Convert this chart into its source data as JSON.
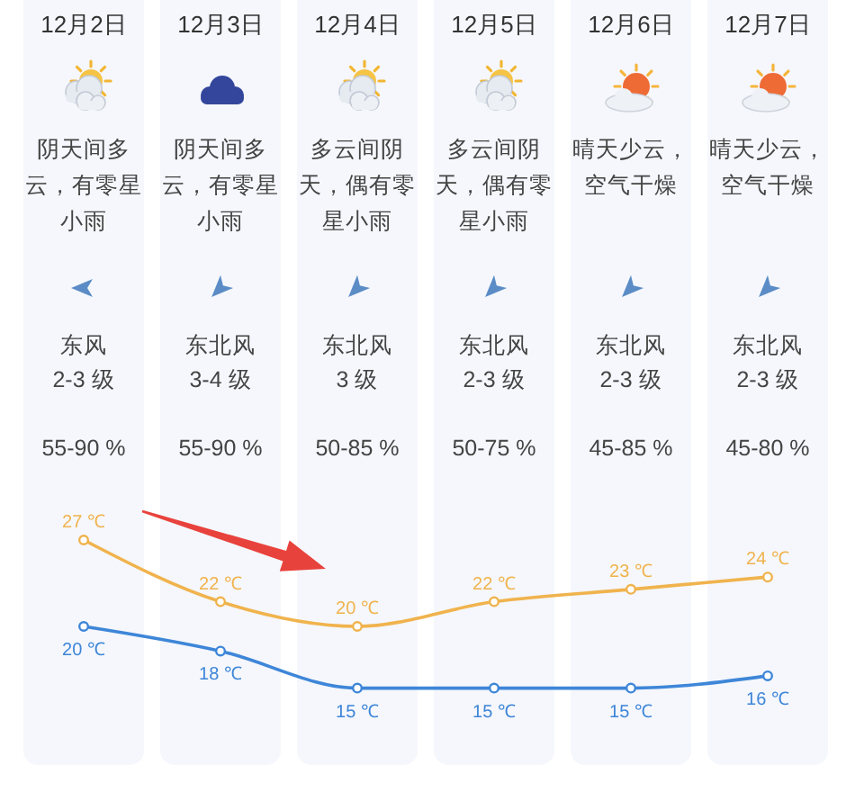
{
  "chart_data": {
    "type": "line",
    "categories": [
      "12月2日",
      "12月3日",
      "12月4日",
      "12月5日",
      "12月6日",
      "12月7日"
    ],
    "series": [
      {
        "color": "#f0b34d",
        "values": [
          27,
          22,
          20,
          22,
          23,
          24
        ],
        "value_labels": [
          "27 ℃",
          "22 ℃",
          "20 ℃",
          "22 ℃",
          "23 ℃",
          "24 ℃"
        ]
      },
      {
        "color": "#3e86d8",
        "values": [
          20,
          18,
          15,
          15,
          15,
          16
        ],
        "value_labels": [
          "20 ℃",
          "18 ℃",
          "15 ℃",
          "15 ℃",
          "15 ℃",
          "16 ℃"
        ]
      }
    ],
    "marker": "circle",
    "tick_labels": "x",
    "bands": [
      {
        "axis": "x",
        "from": "12月2日",
        "to": "12月2日",
        "color": "#f5f7fc"
      },
      {
        "axis": "x",
        "from": "12月3日",
        "to": "12月3日",
        "color": "#f5f7fc"
      },
      {
        "axis": "x",
        "from": "12月4日",
        "to": "12月4日",
        "color": "#f5f7fc"
      },
      {
        "axis": "x",
        "from": "12月5日",
        "to": "12月5日",
        "color": "#f5f7fc"
      },
      {
        "axis": "x",
        "from": "12月6日",
        "to": "12月6日",
        "color": "#f5f7fc"
      },
      {
        "axis": "x",
        "from": "12月7日",
        "to": "12月7日",
        "color": "#f5f7fc"
      }
    ],
    "annotations": [
      "阴天间多云，有零星小雨",
      "阴天间多云，有零星小雨",
      "多云间阴天，偶有零星小雨",
      "多云间阴天，偶有零星小雨",
      "晴天少云，空气干燥",
      "晴天少云，空气干燥",
      "东风",
      "东北风",
      "东北风",
      "东北风",
      "东北风",
      "东北风",
      "2-3 级",
      "3-4 级",
      "3 级",
      "2-3 级",
      "2-3 级",
      "2-3 级",
      "55-90 %",
      "55-90 %",
      "50-85 %",
      "50-75 %",
      "45-85 %",
      "45-80 %"
    ]
  }
}
